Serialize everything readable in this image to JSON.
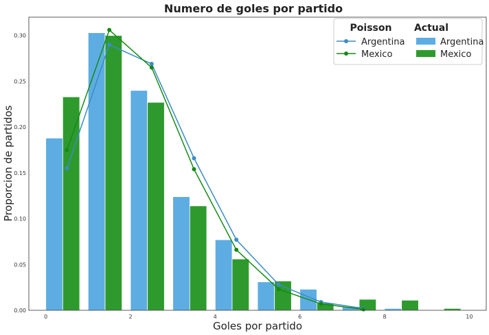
{
  "chart_data": {
    "type": "bar",
    "title": "Numero de goles por partido",
    "xlabel": "Goles por partido",
    "ylabel": "Proporcion de partidos",
    "xlim": [
      -0.4,
      10.4
    ],
    "ylim": [
      0,
      0.32
    ],
    "xticks": [
      0,
      2,
      4,
      6,
      8,
      10
    ],
    "xtick_labels": [
      "0",
      "2",
      "4",
      "6",
      "8",
      "10"
    ],
    "yticks": [
      0.0,
      0.05,
      0.1,
      0.15,
      0.2,
      0.25,
      0.3
    ],
    "ytick_labels": [
      "0.00",
      "0.05",
      "0.10",
      "0.15",
      "0.20",
      "0.25",
      "0.30"
    ],
    "grid": false,
    "legend_position": "top-right",
    "bar_width": 0.4,
    "actual": {
      "legend_title": "Actual",
      "categories": [
        0,
        1,
        2,
        3,
        4,
        5,
        6,
        7,
        8,
        9
      ],
      "series": [
        {
          "name": "Argentina",
          "color": "#5DADE2",
          "values": [
            0.188,
            0.303,
            0.24,
            0.124,
            0.077,
            0.031,
            0.023,
            0.004,
            0.002,
            0.0
          ]
        },
        {
          "name": "Mexico",
          "color": "#2E9A2E",
          "values": [
            0.233,
            0.3,
            0.227,
            0.114,
            0.056,
            0.032,
            0.008,
            0.012,
            0.011,
            0.002
          ]
        }
      ]
    },
    "poisson": {
      "legend_title": "Poisson",
      "x": [
        0.5,
        1.5,
        2.5,
        3.5,
        4.5,
        5.5,
        6.5,
        7.5
      ],
      "series": [
        {
          "name": "Argentina",
          "color": "#3A8CC4",
          "values": [
            0.155,
            0.29,
            0.269,
            0.166,
            0.077,
            0.028,
            0.009,
            0.002
          ]
        },
        {
          "name": "Mexico",
          "color": "#148A14",
          "values": [
            0.175,
            0.306,
            0.265,
            0.154,
            0.066,
            0.023,
            0.007,
            0.001
          ]
        }
      ]
    }
  }
}
